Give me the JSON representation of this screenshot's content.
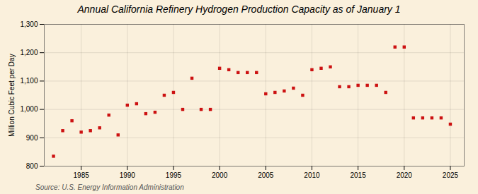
{
  "chart_data": {
    "type": "scatter",
    "title": "Annual California Refinery Hydrogen Production Capacity as of January 1",
    "ylabel": "Million Cubic Feet per Day",
    "annotations": [
      "Source: U.S. Energy Information Administration"
    ],
    "x": [
      1982,
      1983,
      1984,
      1985,
      1986,
      1987,
      1988,
      1989,
      1990,
      1991,
      1992,
      1993,
      1994,
      1995,
      1996,
      1997,
      1998,
      1999,
      2000,
      2001,
      2002,
      2003,
      2004,
      2005,
      2006,
      2007,
      2008,
      2009,
      2010,
      2011,
      2012,
      2013,
      2014,
      2015,
      2016,
      2017,
      2018,
      2019,
      2020,
      2021,
      2022,
      2023,
      2024,
      2025
    ],
    "values": [
      835,
      925,
      960,
      920,
      925,
      935,
      980,
      910,
      1015,
      1020,
      985,
      990,
      1050,
      1060,
      1000,
      1110,
      1000,
      1000,
      1145,
      1140,
      1130,
      1130,
      1130,
      1055,
      1060,
      1065,
      1075,
      1050,
      1140,
      1145,
      1150,
      1080,
      1080,
      1085,
      1085,
      1085,
      1060,
      1220,
      1220,
      970,
      970,
      970,
      970,
      948
    ],
    "color": "#CC1111",
    "marker": "square",
    "xlim": [
      1981,
      2026.5
    ],
    "xticks": [
      1985,
      1990,
      1995,
      2000,
      2005,
      2010,
      2015,
      2020,
      2025
    ],
    "ylim": [
      800,
      1300
    ],
    "yticks": [
      800,
      900,
      {
        "value": 1000,
        "label": "1,000"
      },
      {
        "value": 1100,
        "label": "1,100"
      },
      {
        "value": 1200,
        "label": "1,200"
      },
      {
        "value": 1300,
        "label": "1,300"
      }
    ],
    "grid": true
  }
}
